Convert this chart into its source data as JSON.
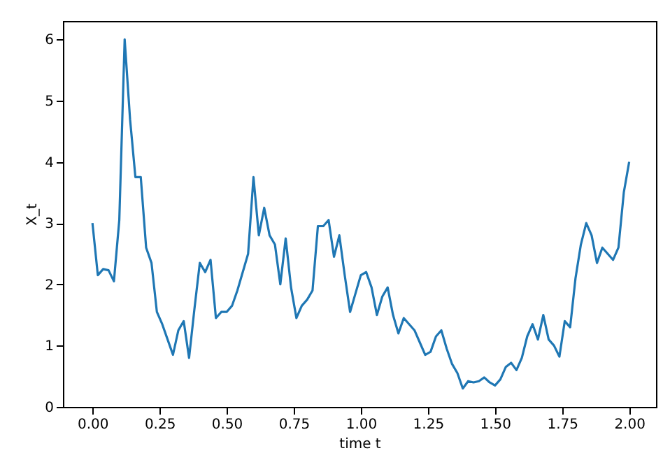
{
  "chart_data": {
    "type": "line",
    "xlabel": "time t",
    "ylabel": "X_t",
    "x": [
      0,
      0.02,
      0.04,
      0.06,
      0.08,
      0.1,
      0.12,
      0.14,
      0.16,
      0.18,
      0.2,
      0.22,
      0.24,
      0.26,
      0.28,
      0.3,
      0.32,
      0.34,
      0.36,
      0.38,
      0.4,
      0.42,
      0.44,
      0.46,
      0.48,
      0.5,
      0.52,
      0.54,
      0.56,
      0.58,
      0.6,
      0.62,
      0.64,
      0.66,
      0.68,
      0.7,
      0.72,
      0.74,
      0.76,
      0.78,
      0.8,
      0.82,
      0.84,
      0.86,
      0.88,
      0.9,
      0.92,
      0.94,
      0.96,
      0.98,
      1.0,
      1.02,
      1.04,
      1.06,
      1.08,
      1.1,
      1.12,
      1.14,
      1.16,
      1.18,
      1.2,
      1.22,
      1.24,
      1.26,
      1.28,
      1.3,
      1.32,
      1.34,
      1.36,
      1.38,
      1.4,
      1.42,
      1.44,
      1.46,
      1.48,
      1.5,
      1.52,
      1.54,
      1.56,
      1.58,
      1.6,
      1.62,
      1.64,
      1.66,
      1.68,
      1.7,
      1.72,
      1.74,
      1.76,
      1.78,
      1.8,
      1.82,
      1.84,
      1.86,
      1.88,
      1.9,
      1.92,
      1.94,
      1.96,
      1.98,
      2.0
    ],
    "series": [
      {
        "color": "#1f77b4",
        "values": [
          3.0,
          2.15,
          2.25,
          2.23,
          2.05,
          3.05,
          6.0,
          4.7,
          3.75,
          3.75,
          2.6,
          2.35,
          1.55,
          1.35,
          1.1,
          0.85,
          1.25,
          1.4,
          0.8,
          1.6,
          2.35,
          2.2,
          2.4,
          1.45,
          1.55,
          1.55,
          1.65,
          1.9,
          2.2,
          2.5,
          3.75,
          2.8,
          3.25,
          2.8,
          2.65,
          2.0,
          2.75,
          1.95,
          1.45,
          1.65,
          1.75,
          1.9,
          2.95,
          2.95,
          3.05,
          2.45,
          2.8,
          2.15,
          1.55,
          1.85,
          2.15,
          2.2,
          1.95,
          1.5,
          1.8,
          1.95,
          1.5,
          1.2,
          1.45,
          1.35,
          1.25,
          1.05,
          0.85,
          0.9,
          1.15,
          1.25,
          0.95,
          0.7,
          0.55,
          0.3,
          0.42,
          0.4,
          0.42,
          0.48,
          0.4,
          0.35,
          0.45,
          0.65,
          0.72,
          0.6,
          0.8,
          1.15,
          1.35,
          1.1,
          1.5,
          1.1,
          1.0,
          0.82,
          1.4,
          1.3,
          2.1,
          2.65,
          3.0,
          2.8,
          2.35,
          2.6,
          2.5,
          2.4,
          2.6,
          3.5,
          4.0
        ]
      }
    ],
    "xlim": [
      -0.11,
      2.1
    ],
    "ylim": [
      0,
      6.3
    ],
    "xticks": [
      {
        "value": 0,
        "label": "0.00"
      },
      {
        "value": 0.25,
        "label": "0.25"
      },
      {
        "value": 0.5,
        "label": "0.50"
      },
      {
        "value": 0.75,
        "label": "0.75"
      },
      {
        "value": 1,
        "label": "1.00"
      },
      {
        "value": 1.25,
        "label": "1.25"
      },
      {
        "value": 1.5,
        "label": "1.50"
      },
      {
        "value": 1.75,
        "label": "1.75"
      },
      {
        "value": 2,
        "label": "2.00"
      }
    ],
    "yticks": [
      0,
      1,
      2,
      3,
      4,
      5,
      6
    ],
    "grid": false
  }
}
